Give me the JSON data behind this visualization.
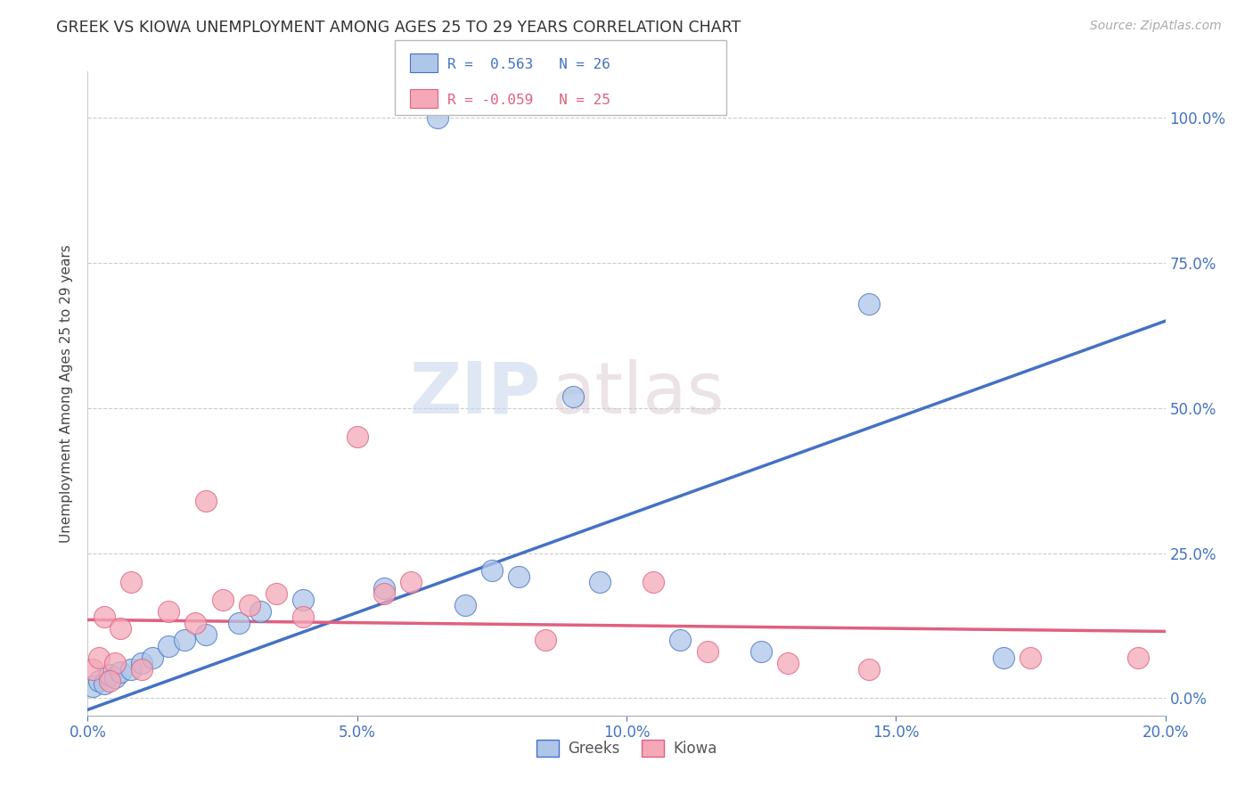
{
  "title": "GREEK VS KIOWA UNEMPLOYMENT AMONG AGES 25 TO 29 YEARS CORRELATION CHART",
  "source": "Source: ZipAtlas.com",
  "xlabel_ticks": [
    "0.0%",
    "5.0%",
    "10.0%",
    "15.0%",
    "20.0%"
  ],
  "xlabel_tick_vals": [
    0.0,
    5.0,
    10.0,
    15.0,
    20.0
  ],
  "ylabel": "Unemployment Among Ages 25 to 29 years",
  "ylabel_ticks": [
    "0.0%",
    "25.0%",
    "50.0%",
    "75.0%",
    "100.0%"
  ],
  "ylabel_tick_vals": [
    0.0,
    25.0,
    50.0,
    75.0,
    100.0
  ],
  "xlim": [
    0.0,
    20.0
  ],
  "ylim": [
    -3.0,
    108.0
  ],
  "greek_R": 0.563,
  "greek_N": 26,
  "kiowa_R": -0.059,
  "kiowa_N": 25,
  "greek_color": "#aec6e8",
  "kiowa_color": "#f4a8b8",
  "greek_line_color": "#4472c4",
  "kiowa_line_color": "#e06080",
  "watermark_zip": "ZIP",
  "watermark_atlas": "atlas",
  "background_color": "#ffffff",
  "greek_x": [
    0.1,
    0.2,
    0.3,
    0.4,
    0.5,
    0.6,
    0.8,
    1.0,
    1.2,
    1.5,
    1.8,
    2.2,
    2.8,
    3.2,
    4.0,
    5.5,
    7.0,
    8.0,
    9.5,
    11.0,
    12.5,
    7.5,
    9.0,
    14.5,
    17.0,
    6.5
  ],
  "greek_y": [
    2.0,
    3.0,
    2.5,
    4.0,
    3.5,
    4.5,
    5.0,
    6.0,
    7.0,
    9.0,
    10.0,
    11.0,
    13.0,
    15.0,
    17.0,
    19.0,
    16.0,
    21.0,
    20.0,
    10.0,
    8.0,
    22.0,
    52.0,
    68.0,
    7.0,
    100.0
  ],
  "kiowa_x": [
    0.1,
    0.2,
    0.3,
    0.5,
    0.6,
    0.8,
    1.0,
    1.5,
    2.0,
    2.5,
    3.0,
    3.5,
    4.0,
    5.0,
    6.0,
    8.5,
    10.5,
    11.5,
    13.0,
    14.5,
    17.5,
    19.5,
    0.4,
    2.2,
    5.5
  ],
  "kiowa_y": [
    5.0,
    7.0,
    14.0,
    6.0,
    12.0,
    20.0,
    5.0,
    15.0,
    13.0,
    17.0,
    16.0,
    18.0,
    14.0,
    45.0,
    20.0,
    10.0,
    20.0,
    8.0,
    6.0,
    5.0,
    7.0,
    7.0,
    3.0,
    34.0,
    18.0
  ],
  "greek_reg_x0": 0.0,
  "greek_reg_y0": -2.0,
  "greek_reg_x1": 20.0,
  "greek_reg_y1": 65.0,
  "kiowa_reg_x0": 0.0,
  "kiowa_reg_y0": 13.5,
  "kiowa_reg_x1": 20.0,
  "kiowa_reg_y1": 11.5
}
